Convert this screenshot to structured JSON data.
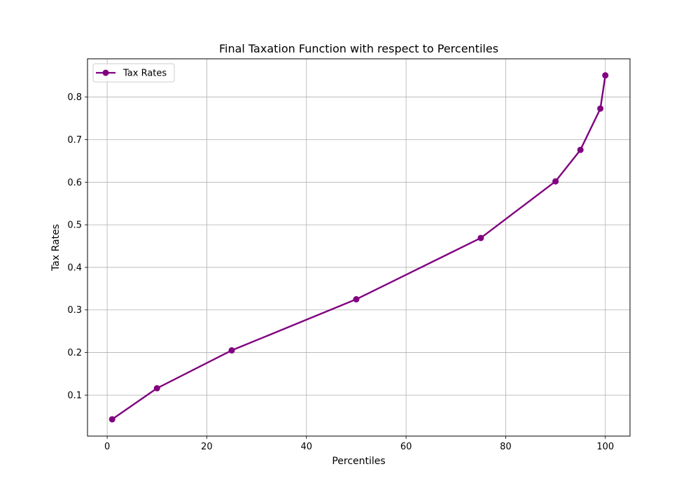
{
  "chart_data": {
    "type": "line",
    "title": "Final Taxation Function with respect to Percentiles",
    "xlabel": "Percentiles",
    "ylabel": "Tax Rates",
    "xlim": [
      -3.95,
      104.95
    ],
    "ylim": [
      0.0036,
      0.8899
    ],
    "xticks": [
      0,
      20,
      40,
      60,
      80,
      100
    ],
    "yticks": [
      0.1,
      0.2,
      0.3,
      0.4,
      0.5,
      0.6,
      0.7,
      0.8
    ],
    "grid": true,
    "legend_position": "upper-left",
    "series": [
      {
        "name": "Tax Rates",
        "color": "#800080",
        "marker": "circle",
        "x": [
          1,
          10,
          25,
          50,
          75,
          90,
          95,
          99,
          100
        ],
        "y": [
          0.043,
          0.116,
          0.205,
          0.325,
          0.469,
          0.602,
          0.676,
          0.773,
          0.851
        ]
      }
    ]
  }
}
